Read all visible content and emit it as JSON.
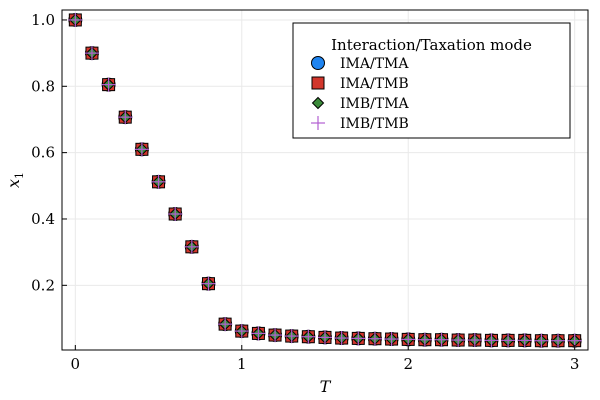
{
  "colors": {
    "IMA/TMA": "#1f84f0",
    "IMA/TMB": "#d2362c",
    "IMB/TMA": "#3b8a3a",
    "IMB/TMB": "#b25fd1",
    "grid": "#e9e9e9",
    "frame": "#000000"
  },
  "chart_data": {
    "type": "scatter",
    "xlabel": "T",
    "ylabel": "x",
    "ylabel_subscript": "1",
    "xlim": [
      -0.08,
      3.08
    ],
    "ylim": [
      0.005,
      1.03
    ],
    "xticks": [
      0,
      1,
      2,
      3
    ],
    "xtick_labels": [
      "0",
      "1",
      "2",
      "3"
    ],
    "yticks": [
      0.2,
      0.4,
      0.6,
      0.8,
      1.0
    ],
    "ytick_labels": [
      "0.2",
      "0.4",
      "0.6",
      "0.8",
      "1.0"
    ],
    "grid": true,
    "legend": {
      "title": "Interaction/Taxation mode",
      "position": "top-right",
      "entries": [
        "IMA/TMA",
        "IMA/TMB",
        "IMB/TMA",
        "IMB/TMB"
      ]
    },
    "x": [
      0.0,
      0.1,
      0.2,
      0.3,
      0.4,
      0.5,
      0.6,
      0.7,
      0.8,
      0.9,
      1.0,
      1.1,
      1.2,
      1.3,
      1.4,
      1.5,
      1.6,
      1.7,
      1.8,
      1.9,
      2.0,
      2.1,
      2.2,
      2.3,
      2.4,
      2.5,
      2.6,
      2.7,
      2.8,
      2.9,
      3.0
    ],
    "series": [
      {
        "name": "IMA/TMA",
        "marker": "circle",
        "values": [
          1.0,
          0.9,
          0.805,
          0.707,
          0.61,
          0.512,
          0.415,
          0.316,
          0.205,
          0.083,
          0.062,
          0.055,
          0.05,
          0.047,
          0.045,
          0.043,
          0.041,
          0.04,
          0.039,
          0.038,
          0.037,
          0.036,
          0.036,
          0.035,
          0.035,
          0.034,
          0.034,
          0.034,
          0.033,
          0.033,
          0.033
        ]
      },
      {
        "name": "IMA/TMB",
        "marker": "square",
        "values": [
          1.0,
          0.9,
          0.805,
          0.707,
          0.61,
          0.512,
          0.415,
          0.316,
          0.205,
          0.083,
          0.062,
          0.055,
          0.05,
          0.047,
          0.045,
          0.043,
          0.041,
          0.04,
          0.039,
          0.038,
          0.037,
          0.036,
          0.036,
          0.035,
          0.035,
          0.034,
          0.034,
          0.034,
          0.033,
          0.033,
          0.033
        ]
      },
      {
        "name": "IMB/TMA",
        "marker": "diamond",
        "values": [
          1.0,
          0.9,
          0.805,
          0.707,
          0.61,
          0.512,
          0.415,
          0.316,
          0.205,
          0.083,
          0.062,
          0.055,
          0.05,
          0.047,
          0.045,
          0.043,
          0.041,
          0.04,
          0.039,
          0.038,
          0.037,
          0.036,
          0.036,
          0.035,
          0.035,
          0.034,
          0.034,
          0.034,
          0.033,
          0.033,
          0.033
        ]
      },
      {
        "name": "IMB/TMB",
        "marker": "cross",
        "values": [
          1.0,
          0.9,
          0.805,
          0.707,
          0.61,
          0.512,
          0.415,
          0.316,
          0.205,
          0.083,
          0.062,
          0.055,
          0.05,
          0.047,
          0.045,
          0.043,
          0.041,
          0.04,
          0.039,
          0.038,
          0.037,
          0.036,
          0.036,
          0.035,
          0.035,
          0.034,
          0.034,
          0.034,
          0.033,
          0.033,
          0.033
        ]
      }
    ]
  }
}
